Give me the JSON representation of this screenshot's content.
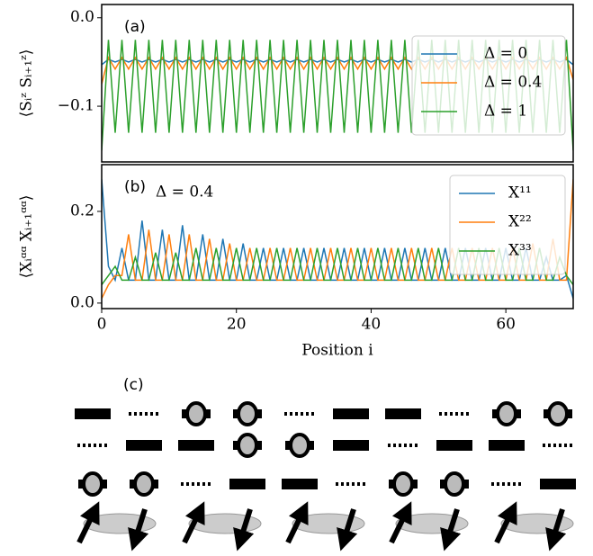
{
  "chart_data": [
    {
      "type": "line",
      "annotation": "(a)",
      "ylabel": "⟨Sᵢᶻ Sᵢ₊₁ᶻ⟩",
      "x": [
        0,
        1,
        2,
        3,
        4,
        5,
        6,
        7,
        8,
        9,
        10,
        11,
        12,
        13,
        14,
        15,
        16,
        17,
        18,
        19,
        20,
        21,
        22,
        23,
        24,
        25,
        26,
        27,
        28,
        29,
        30,
        31,
        32,
        33,
        34,
        35,
        36,
        37,
        38,
        39,
        40,
        41,
        42,
        43,
        44,
        45,
        46,
        47,
        48,
        49,
        50,
        51,
        52,
        53,
        54,
        55,
        56,
        57,
        58,
        59,
        60,
        61,
        62,
        63,
        64,
        65,
        66,
        67,
        68,
        69,
        70
      ],
      "xlim": [
        0,
        70
      ],
      "ylim": [
        -0.163,
        0.015
      ],
      "yticks": [
        {
          "value": 0,
          "label": "0.0"
        },
        {
          "value": -0.1,
          "label": "−0.1"
        }
      ],
      "legend": "upper right",
      "series": [
        {
          "name": "Δ = 0",
          "color": "#1f77b4",
          "values": [
            -0.053,
            -0.047,
            -0.05,
            -0.047,
            -0.05,
            -0.047,
            -0.05,
            -0.047,
            -0.05,
            -0.047,
            -0.05,
            -0.047,
            -0.05,
            -0.047,
            -0.05,
            -0.047,
            -0.05,
            -0.047,
            -0.05,
            -0.047,
            -0.05,
            -0.047,
            -0.05,
            -0.047,
            -0.05,
            -0.047,
            -0.05,
            -0.047,
            -0.05,
            -0.047,
            -0.05,
            -0.047,
            -0.05,
            -0.047,
            -0.05,
            -0.047,
            -0.05,
            -0.047,
            -0.05,
            -0.047,
            -0.05,
            -0.047,
            -0.05,
            -0.047,
            -0.05,
            -0.047,
            -0.05,
            -0.047,
            -0.05,
            -0.047,
            -0.05,
            -0.047,
            -0.05,
            -0.047,
            -0.05,
            -0.047,
            -0.05,
            -0.047,
            -0.05,
            -0.047,
            -0.05,
            -0.047,
            -0.05,
            -0.047,
            -0.05,
            -0.047,
            -0.05,
            -0.047,
            -0.05,
            -0.047,
            -0.053
          ]
        },
        {
          "name": "Δ = 0.4",
          "color": "#ff7f0e",
          "values": [
            -0.075,
            -0.045,
            -0.058,
            -0.045,
            -0.058,
            -0.045,
            -0.058,
            -0.045,
            -0.058,
            -0.045,
            -0.058,
            -0.045,
            -0.058,
            -0.045,
            -0.058,
            -0.045,
            -0.058,
            -0.045,
            -0.058,
            -0.045,
            -0.058,
            -0.045,
            -0.058,
            -0.045,
            -0.058,
            -0.045,
            -0.058,
            -0.045,
            -0.058,
            -0.045,
            -0.058,
            -0.045,
            -0.058,
            -0.045,
            -0.058,
            -0.045,
            -0.058,
            -0.045,
            -0.058,
            -0.045,
            -0.058,
            -0.045,
            -0.058,
            -0.045,
            -0.058,
            -0.045,
            -0.058,
            -0.045,
            -0.058,
            -0.045,
            -0.058,
            -0.045,
            -0.058,
            -0.045,
            -0.058,
            -0.045,
            -0.058,
            -0.045,
            -0.058,
            -0.045,
            -0.058,
            -0.045,
            -0.058,
            -0.045,
            -0.058,
            -0.045,
            -0.058,
            -0.045,
            -0.058,
            -0.045,
            -0.07
          ]
        },
        {
          "name": "Δ = 1",
          "color": "#2ca02c",
          "values": [
            -0.15,
            -0.025,
            -0.13,
            -0.025,
            -0.13,
            -0.025,
            -0.13,
            -0.025,
            -0.13,
            -0.025,
            -0.13,
            -0.025,
            -0.13,
            -0.025,
            -0.13,
            -0.025,
            -0.13,
            -0.025,
            -0.13,
            -0.025,
            -0.13,
            -0.025,
            -0.13,
            -0.025,
            -0.13,
            -0.025,
            -0.13,
            -0.025,
            -0.13,
            -0.025,
            -0.13,
            -0.025,
            -0.13,
            -0.025,
            -0.13,
            -0.025,
            -0.13,
            -0.025,
            -0.13,
            -0.025,
            -0.13,
            -0.025,
            -0.13,
            -0.025,
            -0.13,
            -0.025,
            -0.13,
            -0.025,
            -0.13,
            -0.025,
            -0.13,
            -0.025,
            -0.13,
            -0.025,
            -0.13,
            -0.025,
            -0.13,
            -0.025,
            -0.13,
            -0.025,
            -0.13,
            -0.025,
            -0.13,
            -0.025,
            -0.13,
            -0.025,
            -0.13,
            -0.025,
            -0.13,
            -0.025,
            -0.15
          ]
        }
      ]
    },
    {
      "type": "line",
      "annotation": "(b)",
      "subtitle": "Δ = 0.4",
      "ylabel": "⟨Xᵢᵅᵅ Xᵢ₊₁ᵅᵅ⟩",
      "xlabel": "Position i",
      "x": [
        0,
        1,
        2,
        3,
        4,
        5,
        6,
        7,
        8,
        9,
        10,
        11,
        12,
        13,
        14,
        15,
        16,
        17,
        18,
        19,
        20,
        21,
        22,
        23,
        24,
        25,
        26,
        27,
        28,
        29,
        30,
        31,
        32,
        33,
        34,
        35,
        36,
        37,
        38,
        39,
        40,
        41,
        42,
        43,
        44,
        45,
        46,
        47,
        48,
        49,
        50,
        51,
        52,
        53,
        54,
        55,
        56,
        57,
        58,
        59,
        60,
        61,
        62,
        63,
        64,
        65,
        66,
        67,
        68,
        69,
        70
      ],
      "xlim": [
        0,
        70
      ],
      "xticks": [
        0,
        20,
        40,
        60
      ],
      "ylim": [
        -0.012,
        0.302
      ],
      "yticks": [
        {
          "value": 0,
          "label": "0.0"
        },
        {
          "value": 0.2,
          "label": "0.2"
        }
      ],
      "legend": "upper right",
      "series": [
        {
          "name": "X¹¹",
          "color": "#1f77b4",
          "values": [
            0.27,
            0.08,
            0.05,
            0.12,
            0.05,
            0.05,
            0.18,
            0.05,
            0.05,
            0.16,
            0.05,
            0.05,
            0.17,
            0.05,
            0.05,
            0.15,
            0.05,
            0.05,
            0.14,
            0.05,
            0.05,
            0.13,
            0.05,
            0.05,
            0.12,
            0.05,
            0.05,
            0.12,
            0.05,
            0.05,
            0.12,
            0.05,
            0.05,
            0.12,
            0.05,
            0.05,
            0.12,
            0.05,
            0.05,
            0.12,
            0.05,
            0.05,
            0.12,
            0.05,
            0.05,
            0.12,
            0.05,
            0.05,
            0.12,
            0.05,
            0.05,
            0.12,
            0.05,
            0.05,
            0.12,
            0.05,
            0.05,
            0.12,
            0.05,
            0.05,
            0.12,
            0.05,
            0.05,
            0.12,
            0.05,
            0.05,
            0.1,
            0.05,
            0.05,
            0.06,
            0.01
          ]
        },
        {
          "name": "X²²",
          "color": "#ff7f0e",
          "values": [
            0.01,
            0.04,
            0.06,
            0.06,
            0.15,
            0.05,
            0.05,
            0.16,
            0.05,
            0.05,
            0.15,
            0.05,
            0.05,
            0.15,
            0.05,
            0.05,
            0.14,
            0.05,
            0.05,
            0.13,
            0.05,
            0.05,
            0.12,
            0.05,
            0.05,
            0.12,
            0.05,
            0.05,
            0.12,
            0.05,
            0.05,
            0.12,
            0.05,
            0.05,
            0.12,
            0.05,
            0.05,
            0.12,
            0.05,
            0.05,
            0.12,
            0.05,
            0.05,
            0.12,
            0.05,
            0.05,
            0.12,
            0.05,
            0.05,
            0.12,
            0.05,
            0.05,
            0.12,
            0.05,
            0.05,
            0.12,
            0.05,
            0.05,
            0.12,
            0.05,
            0.05,
            0.12,
            0.05,
            0.05,
            0.13,
            0.05,
            0.05,
            0.14,
            0.05,
            0.05,
            0.27
          ]
        },
        {
          "name": "X³³",
          "color": "#2ca02c",
          "values": [
            0.04,
            0.06,
            0.08,
            0.05,
            0.05,
            0.1,
            0.05,
            0.05,
            0.11,
            0.05,
            0.05,
            0.11,
            0.05,
            0.05,
            0.12,
            0.05,
            0.05,
            0.12,
            0.05,
            0.05,
            0.12,
            0.05,
            0.05,
            0.12,
            0.05,
            0.05,
            0.12,
            0.05,
            0.05,
            0.12,
            0.05,
            0.05,
            0.12,
            0.05,
            0.05,
            0.12,
            0.05,
            0.05,
            0.12,
            0.05,
            0.05,
            0.12,
            0.05,
            0.05,
            0.12,
            0.05,
            0.05,
            0.12,
            0.05,
            0.05,
            0.12,
            0.05,
            0.05,
            0.12,
            0.05,
            0.05,
            0.12,
            0.05,
            0.05,
            0.12,
            0.05,
            0.05,
            0.12,
            0.05,
            0.05,
            0.12,
            0.05,
            0.05,
            0.1,
            0.06,
            0.04
          ]
        }
      ]
    }
  ],
  "diagram": {
    "label": "(c)"
  }
}
